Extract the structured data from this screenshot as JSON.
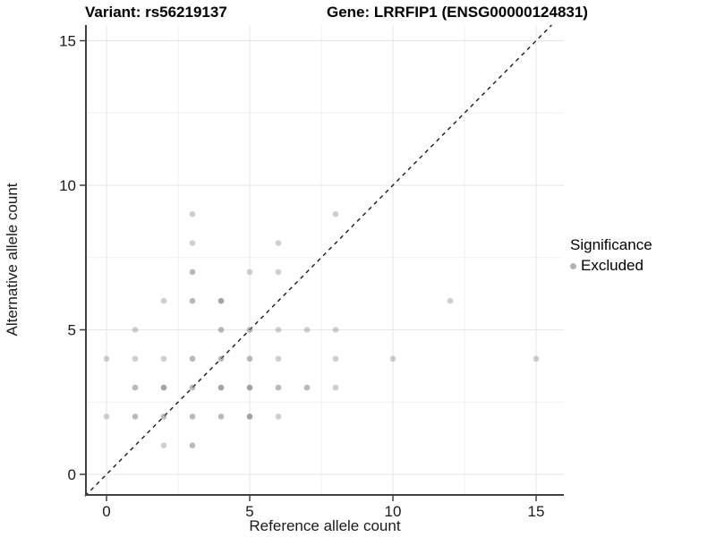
{
  "header": {
    "left_title": "Variant: rs56219137",
    "right_title": "Gene: LRRFIP1 (ENSG00000124831)"
  },
  "legend": {
    "title": "Significance",
    "items": [
      {
        "label": "Excluded",
        "color": "#b3b3b3"
      }
    ],
    "position": "right"
  },
  "colors": {
    "background": "#ffffff",
    "grid_major": "#e6e6e6",
    "grid_minor": "#f1f1f1",
    "axis_line": "#404040",
    "tick_text": "#1a1a1a",
    "point": "#808080",
    "identity_line": "#1a1a1a"
  },
  "chart_data": {
    "type": "scatter",
    "title_left": "Variant: rs56219137",
    "title_right": "Gene: LRRFIP1 (ENSG00000124831)",
    "xlabel": "Reference allele count",
    "ylabel": "Alternative allele count",
    "xlim": [
      -0.75,
      16.05
    ],
    "ylim": [
      -0.78,
      16.25
    ],
    "x_ticks": [
      0,
      5,
      10,
      15
    ],
    "y_ticks": [
      0,
      5,
      10,
      15
    ],
    "grid_major": [
      0,
      5,
      10,
      15
    ],
    "grid_minor": [
      2.5,
      7.5,
      12.5
    ],
    "identity_line": {
      "style": "dashed",
      "slope": 1,
      "intercept": 0
    },
    "legend_title": "Significance",
    "legend_entries": [
      "Excluded"
    ],
    "series_name": "Excluded",
    "points": [
      {
        "x": 0,
        "y": 2,
        "overlap": 1
      },
      {
        "x": 0,
        "y": 4,
        "overlap": 1
      },
      {
        "x": 1,
        "y": 2,
        "overlap": 2
      },
      {
        "x": 1,
        "y": 3,
        "overlap": 2
      },
      {
        "x": 1,
        "y": 4,
        "overlap": 1
      },
      {
        "x": 1,
        "y": 5,
        "overlap": 1
      },
      {
        "x": 2,
        "y": 1,
        "overlap": 1
      },
      {
        "x": 2,
        "y": 2,
        "overlap": 2
      },
      {
        "x": 2,
        "y": 3,
        "overlap": 3
      },
      {
        "x": 2,
        "y": 4,
        "overlap": 1
      },
      {
        "x": 2,
        "y": 6,
        "overlap": 1
      },
      {
        "x": 3,
        "y": 1,
        "overlap": 2
      },
      {
        "x": 3,
        "y": 2,
        "overlap": 2
      },
      {
        "x": 3,
        "y": 3,
        "overlap": 2
      },
      {
        "x": 3,
        "y": 4,
        "overlap": 2
      },
      {
        "x": 3,
        "y": 6,
        "overlap": 2
      },
      {
        "x": 3,
        "y": 7,
        "overlap": 2
      },
      {
        "x": 3,
        "y": 8,
        "overlap": 1
      },
      {
        "x": 3,
        "y": 9,
        "overlap": 1
      },
      {
        "x": 4,
        "y": 2,
        "overlap": 2
      },
      {
        "x": 4,
        "y": 3,
        "overlap": 3
      },
      {
        "x": 4,
        "y": 4,
        "overlap": 2
      },
      {
        "x": 4,
        "y": 5,
        "overlap": 2
      },
      {
        "x": 4,
        "y": 6,
        "overlap": 3
      },
      {
        "x": 5,
        "y": 2,
        "overlap": 3
      },
      {
        "x": 5,
        "y": 3,
        "overlap": 3
      },
      {
        "x": 5,
        "y": 4,
        "overlap": 2
      },
      {
        "x": 5,
        "y": 5,
        "overlap": 2
      },
      {
        "x": 5,
        "y": 7,
        "overlap": 1
      },
      {
        "x": 6,
        "y": 2,
        "overlap": 1
      },
      {
        "x": 6,
        "y": 3,
        "overlap": 2
      },
      {
        "x": 6,
        "y": 4,
        "overlap": 1
      },
      {
        "x": 6,
        "y": 5,
        "overlap": 1
      },
      {
        "x": 6,
        "y": 7,
        "overlap": 1
      },
      {
        "x": 6,
        "y": 8,
        "overlap": 1
      },
      {
        "x": 7,
        "y": 3,
        "overlap": 2
      },
      {
        "x": 7,
        "y": 5,
        "overlap": 1
      },
      {
        "x": 8,
        "y": 3,
        "overlap": 1
      },
      {
        "x": 8,
        "y": 4,
        "overlap": 1
      },
      {
        "x": 8,
        "y": 5,
        "overlap": 1
      },
      {
        "x": 8,
        "y": 9,
        "overlap": 1
      },
      {
        "x": 10,
        "y": 4,
        "overlap": 1
      },
      {
        "x": 12,
        "y": 6,
        "overlap": 1
      },
      {
        "x": 15,
        "y": 4,
        "overlap": 1
      }
    ]
  }
}
